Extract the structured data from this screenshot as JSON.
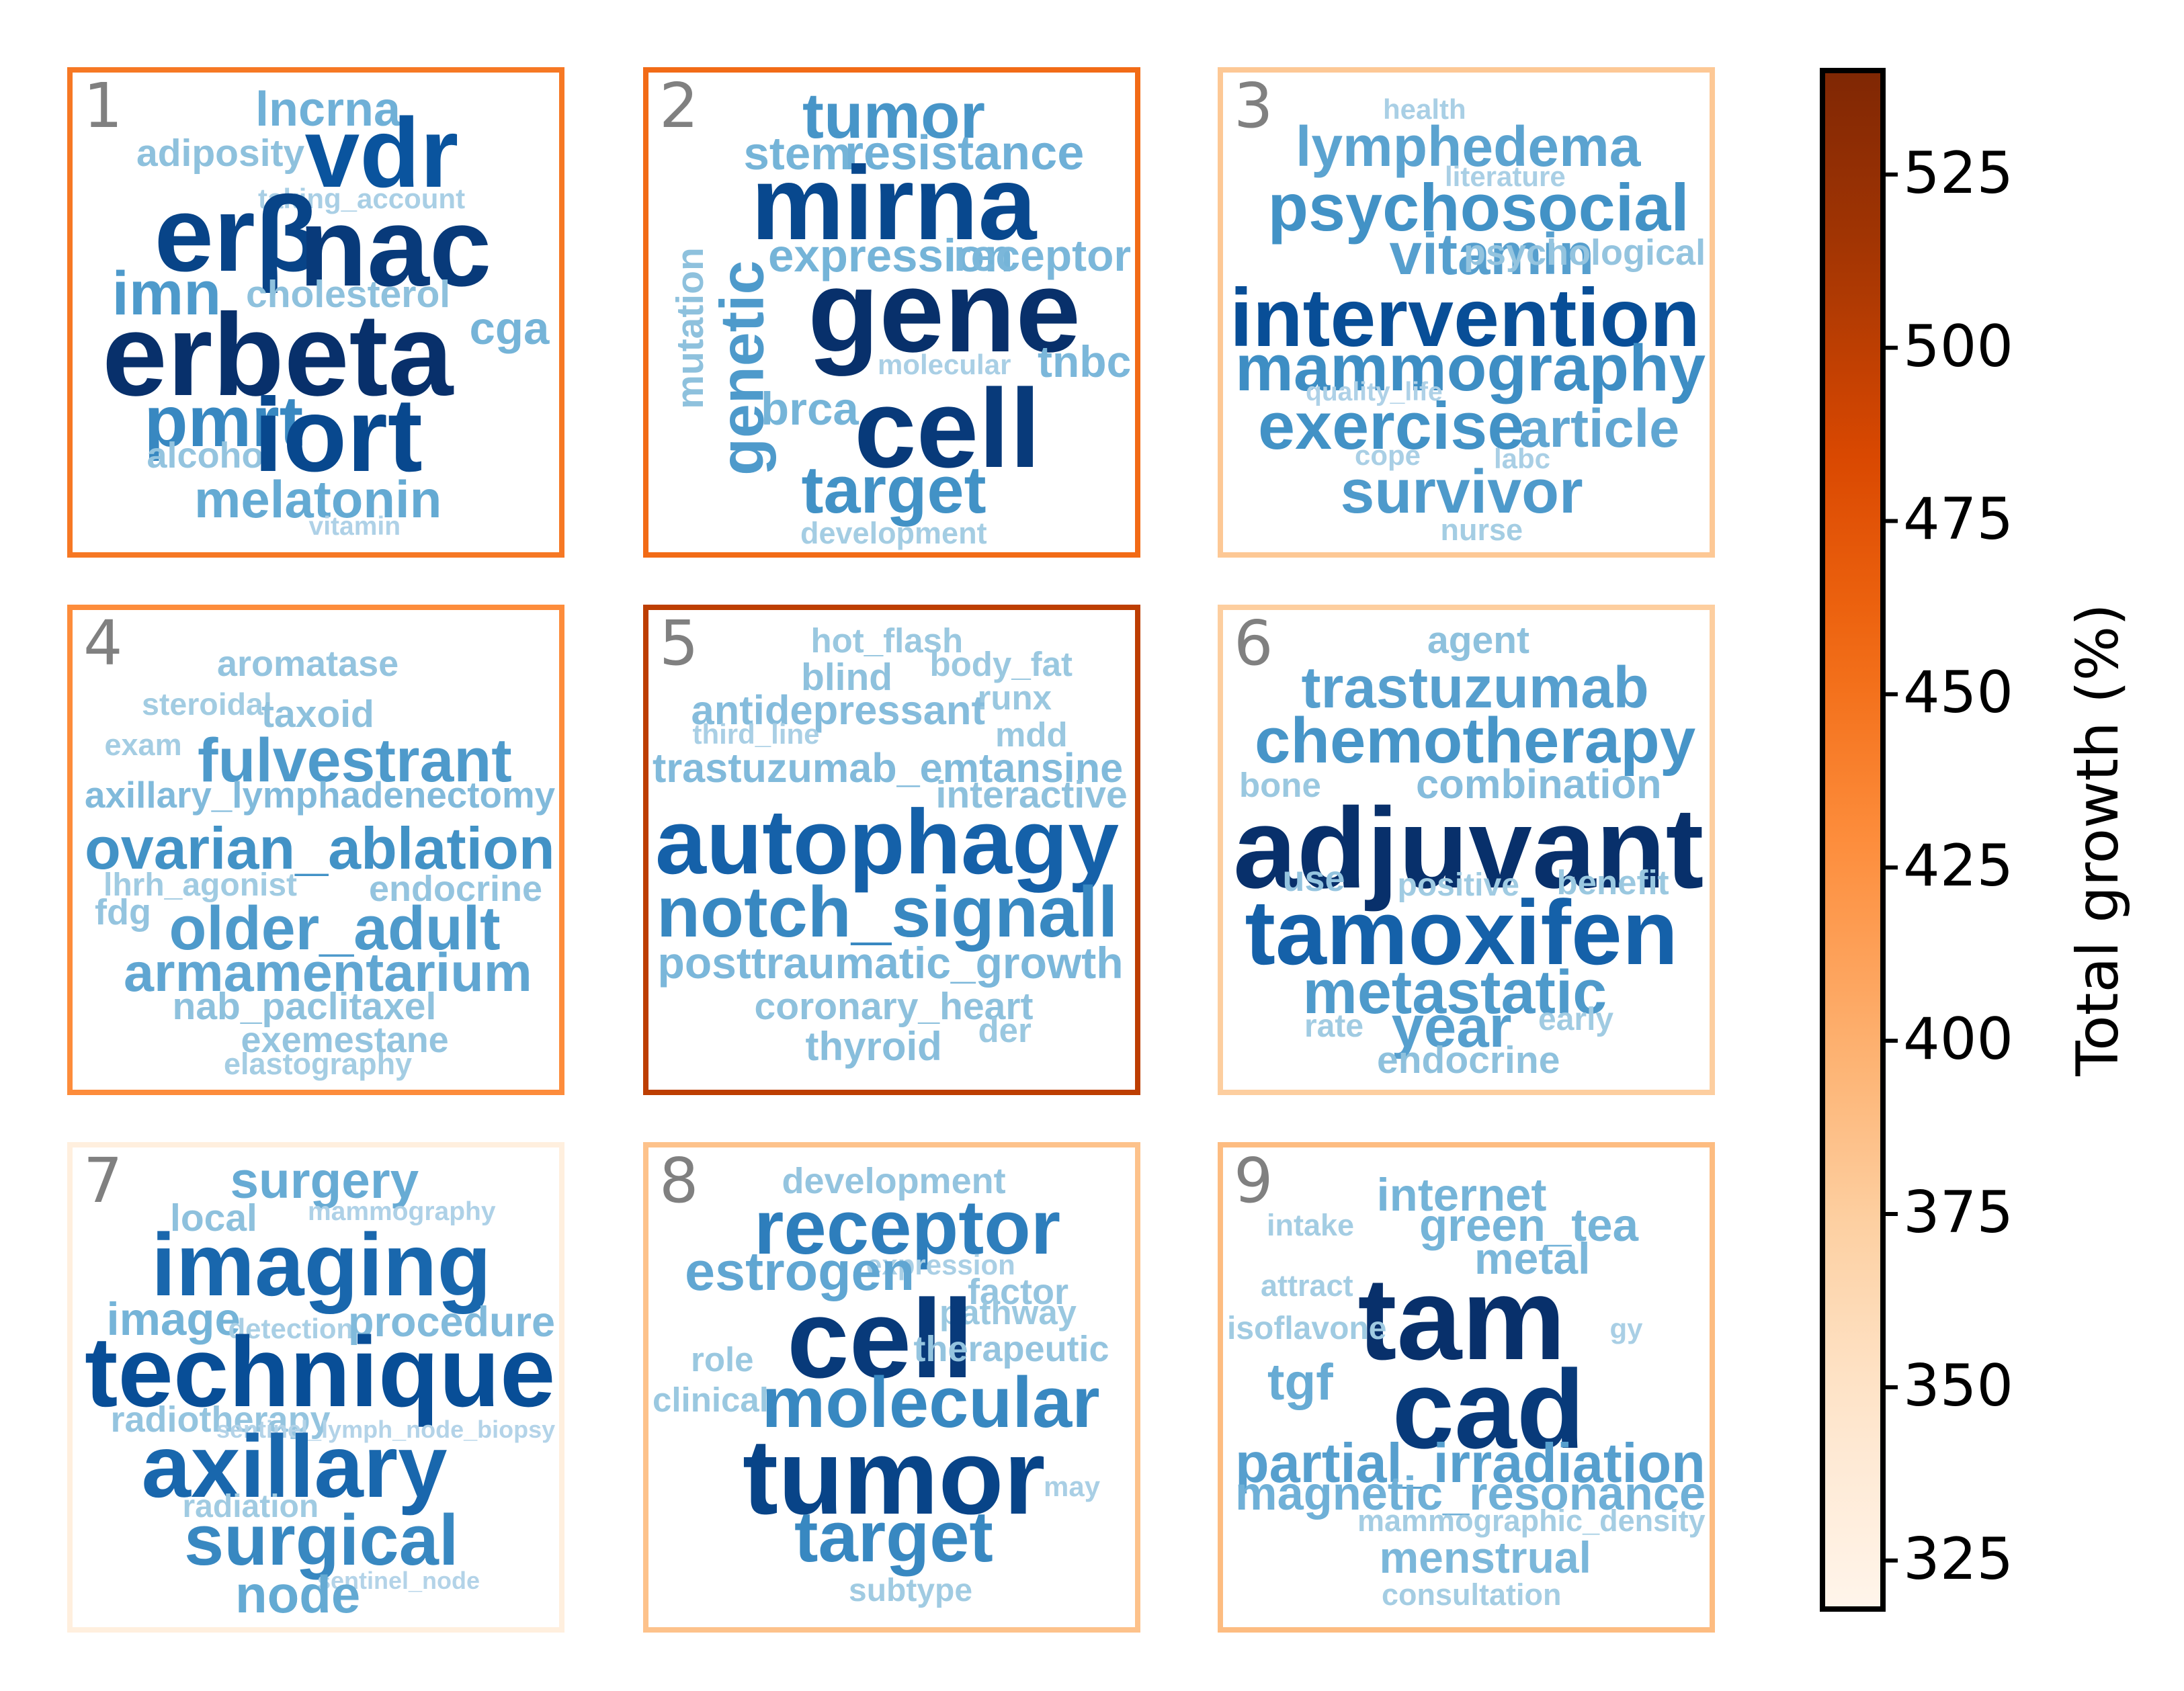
{
  "chart_data": {
    "type": "wordcloud-grid",
    "colorbar": {
      "label": "Total growth (%)",
      "min": 318,
      "max": 540,
      "ticks": [
        325,
        350,
        375,
        400,
        425,
        450,
        475,
        500,
        525
      ]
    },
    "panels": [
      {
        "number": "1",
        "growth": 445,
        "words": [
          {
            "text": "lncrna",
            "weight": 0.32
          },
          {
            "text": "adiposity",
            "weight": 0.22
          },
          {
            "text": "vdr",
            "weight": 0.82
          },
          {
            "text": "taking_account",
            "weight": 0.12
          },
          {
            "text": "erβ",
            "weight": 0.9
          },
          {
            "text": "nac",
            "weight": 0.95
          },
          {
            "text": "imn",
            "weight": 0.45
          },
          {
            "text": "cholesterol",
            "weight": 0.22
          },
          {
            "text": "cga",
            "weight": 0.3
          },
          {
            "text": "erbeta",
            "weight": 1.0
          },
          {
            "text": "pmrt",
            "weight": 0.55
          },
          {
            "text": "alcohol",
            "weight": 0.2
          },
          {
            "text": "iort",
            "weight": 0.88
          },
          {
            "text": "melatonin",
            "weight": 0.36
          },
          {
            "text": "vitamin",
            "weight": 0.1
          }
        ]
      },
      {
        "number": "2",
        "growth": 455,
        "words": [
          {
            "text": "tumor",
            "weight": 0.48
          },
          {
            "text": "stem",
            "weight": 0.3
          },
          {
            "text": "resistance",
            "weight": 0.32
          },
          {
            "text": "mirna",
            "weight": 0.88
          },
          {
            "text": "expression",
            "weight": 0.3
          },
          {
            "text": "receptor",
            "weight": 0.28
          },
          {
            "text": "mutation",
            "weight": 0.22
          },
          {
            "text": "genetic",
            "weight": 0.45
          },
          {
            "text": "gene",
            "weight": 1.0
          },
          {
            "text": "molecular",
            "weight": 0.12
          },
          {
            "text": "tnbc",
            "weight": 0.28
          },
          {
            "text": "brca",
            "weight": 0.3
          },
          {
            "text": "cell",
            "weight": 0.95
          },
          {
            "text": "target",
            "weight": 0.5
          },
          {
            "text": "development",
            "weight": 0.14
          }
        ]
      },
      {
        "number": "3",
        "growth": 380,
        "words": [
          {
            "text": "health",
            "weight": 0.12
          },
          {
            "text": "lymphedema",
            "weight": 0.4
          },
          {
            "text": "literature",
            "weight": 0.12
          },
          {
            "text": "psychosocial",
            "weight": 0.5
          },
          {
            "text": "vitamin",
            "weight": 0.42
          },
          {
            "text": "psychological",
            "weight": 0.2
          },
          {
            "text": "intervention",
            "weight": 0.85
          },
          {
            "text": "mammography",
            "weight": 0.52
          },
          {
            "text": "quality_life",
            "weight": 0.1
          },
          {
            "text": "exercise",
            "weight": 0.5
          },
          {
            "text": "article",
            "weight": 0.38
          },
          {
            "text": "cope",
            "weight": 0.12
          },
          {
            "text": "labc",
            "weight": 0.12
          },
          {
            "text": "survivor",
            "weight": 0.45
          },
          {
            "text": "nurse",
            "weight": 0.14
          }
        ]
      },
      {
        "number": "4",
        "growth": 430,
        "words": [
          {
            "text": "aromatase",
            "weight": 0.2
          },
          {
            "text": "steroidal",
            "weight": 0.15
          },
          {
            "text": "taxoid",
            "weight": 0.22
          },
          {
            "text": "exam",
            "weight": 0.14
          },
          {
            "text": "fulvestrant",
            "weight": 0.45
          },
          {
            "text": "axillary_lymphadenectomy",
            "weight": 0.26
          },
          {
            "text": "ovarian_ablation",
            "weight": 0.5
          },
          {
            "text": "lhrh_agonist",
            "weight": 0.16
          },
          {
            "text": "endocrine",
            "weight": 0.2
          },
          {
            "text": "fdg",
            "weight": 0.2
          },
          {
            "text": "older_adult",
            "weight": 0.45
          },
          {
            "text": "armamentarium",
            "weight": 0.38
          },
          {
            "text": "nab_paclitaxel",
            "weight": 0.22
          },
          {
            "text": "exemestane",
            "weight": 0.2
          },
          {
            "text": "elastography",
            "weight": 0.14
          }
        ]
      },
      {
        "number": "5",
        "growth": 500,
        "words": [
          {
            "text": "hot_flash",
            "weight": 0.18
          },
          {
            "text": "blind",
            "weight": 0.22
          },
          {
            "text": "body_fat",
            "weight": 0.18
          },
          {
            "text": "runx",
            "weight": 0.18
          },
          {
            "text": "antidepressant",
            "weight": 0.25
          },
          {
            "text": "third_line",
            "weight": 0.12
          },
          {
            "text": "mdd",
            "weight": 0.18
          },
          {
            "text": "trastuzumab_emtansine",
            "weight": 0.26
          },
          {
            "text": "interactive",
            "weight": 0.22
          },
          {
            "text": "autophagy",
            "weight": 0.75
          },
          {
            "text": "notch_signall",
            "weight": 0.55
          },
          {
            "text": "posttraumatic_growth",
            "weight": 0.28
          },
          {
            "text": "coronary_heart",
            "weight": 0.22
          },
          {
            "text": "der",
            "weight": 0.18
          },
          {
            "text": "thyroid",
            "weight": 0.24
          }
        ]
      },
      {
        "number": "6",
        "growth": 375,
        "words": [
          {
            "text": "agent",
            "weight": 0.22
          },
          {
            "text": "trastuzumab",
            "weight": 0.42
          },
          {
            "text": "chemotherapy",
            "weight": 0.48
          },
          {
            "text": "bone",
            "weight": 0.18
          },
          {
            "text": "combination",
            "weight": 0.25
          },
          {
            "text": "adjuvant",
            "weight": 1.0
          },
          {
            "text": "use",
            "weight": 0.2
          },
          {
            "text": "positive",
            "weight": 0.16
          },
          {
            "text": "benefit",
            "weight": 0.18
          },
          {
            "text": "tamoxifen",
            "weight": 0.75
          },
          {
            "text": "metastatic",
            "weight": 0.45
          },
          {
            "text": "rate",
            "weight": 0.16
          },
          {
            "text": "year",
            "weight": 0.42
          },
          {
            "text": "early",
            "weight": 0.16
          },
          {
            "text": "endocrine",
            "weight": 0.22
          }
        ]
      },
      {
        "number": "7",
        "growth": 330,
        "words": [
          {
            "text": "surgery",
            "weight": 0.35
          },
          {
            "text": "local",
            "weight": 0.22
          },
          {
            "text": "mammography",
            "weight": 0.1
          },
          {
            "text": "imaging",
            "weight": 0.72
          },
          {
            "text": "image",
            "weight": 0.3
          },
          {
            "text": "detection",
            "weight": 0.12
          },
          {
            "text": "procedure",
            "weight": 0.26
          },
          {
            "text": "technique",
            "weight": 0.85
          },
          {
            "text": "radiotherapy",
            "weight": 0.2
          },
          {
            "text": "sentinel_lymph_node_biopsy",
            "weight": 0.08
          },
          {
            "text": "axillary",
            "weight": 0.72
          },
          {
            "text": "radiation",
            "weight": 0.16
          },
          {
            "text": "surgical",
            "weight": 0.55
          },
          {
            "text": "sentinel_node",
            "weight": 0.08
          },
          {
            "text": "node",
            "weight": 0.36
          }
        ]
      },
      {
        "number": "8",
        "growth": 385,
        "words": [
          {
            "text": "development",
            "weight": 0.2
          },
          {
            "text": "receptor",
            "weight": 0.6
          },
          {
            "text": "expression",
            "weight": 0.12
          },
          {
            "text": "estrogen",
            "weight": 0.38
          },
          {
            "text": "factor",
            "weight": 0.2
          },
          {
            "text": "pathway",
            "weight": 0.18
          },
          {
            "text": "role",
            "weight": 0.18
          },
          {
            "text": "cell",
            "weight": 0.95
          },
          {
            "text": "therapeutic",
            "weight": 0.2
          },
          {
            "text": "clinical",
            "weight": 0.18
          },
          {
            "text": "molecular",
            "weight": 0.55
          },
          {
            "text": "tumor",
            "weight": 0.9
          },
          {
            "text": "may",
            "weight": 0.12
          },
          {
            "text": "target",
            "weight": 0.55
          },
          {
            "text": "subtype",
            "weight": 0.16
          }
        ]
      },
      {
        "number": "9",
        "growth": 390,
        "words": [
          {
            "text": "internet",
            "weight": 0.3
          },
          {
            "text": "intake",
            "weight": 0.14
          },
          {
            "text": "green_tea",
            "weight": 0.3
          },
          {
            "text": "metal",
            "weight": 0.28
          },
          {
            "text": "attract",
            "weight": 0.14
          },
          {
            "text": "tam",
            "weight": 1.0
          },
          {
            "text": "isoflavone",
            "weight": 0.16
          },
          {
            "text": "gy",
            "weight": 0.12
          },
          {
            "text": "tgf",
            "weight": 0.35
          },
          {
            "text": "cad",
            "weight": 0.95
          },
          {
            "text": "partial_irradiation",
            "weight": 0.42
          },
          {
            "text": "magnetic_resonance",
            "weight": 0.32
          },
          {
            "text": "mammographic_density",
            "weight": 0.14
          },
          {
            "text": "menstrual",
            "weight": 0.28
          },
          {
            "text": "consultation",
            "weight": 0.14
          }
        ]
      }
    ]
  }
}
